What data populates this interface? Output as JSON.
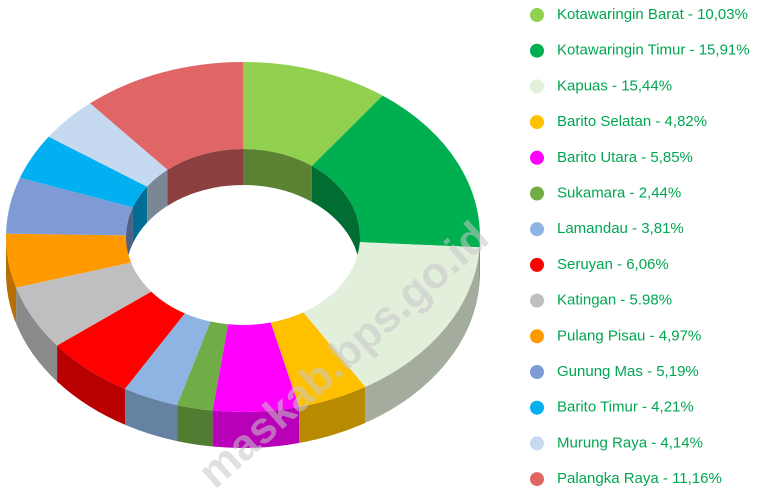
{
  "chart_data": {
    "type": "pie",
    "style": "3d-donut",
    "categories": [
      "Kotawaringin Barat - 10,03%",
      "Kotawaringin Timur - 15,91%",
      "Kapuas - 15,44%",
      "Barito Selatan - 4,82%",
      "Barito Utara - 5,85%",
      "Sukamara - 2,44%",
      "Lamandau - 3,81%",
      "Seruyan - 6,06%",
      "Katingan - 5.98%",
      "Pulang Pisau - 4,97%",
      "Gunung Mas - 5,19%",
      "Barito Timur - 4,21%",
      "Murung Raya - 4,14%",
      "Palangka Raya - 11,16%"
    ],
    "values": [
      10.03,
      15.91,
      15.44,
      4.82,
      5.85,
      2.44,
      3.81,
      6.06,
      5.98,
      4.97,
      5.19,
      4.21,
      4.14,
      11.16
    ],
    "colors": [
      "#92d050",
      "#00b050",
      "#e2efda",
      "#ffc000",
      "#ff00ff",
      "#70ad47",
      "#8db4e2",
      "#ff0000",
      "#bfbfbf",
      "#ff9900",
      "#7f9bd6",
      "#00b0f0",
      "#c5d9f1",
      "#e06666"
    ],
    "legend": "right",
    "watermark": "maskab.bps.go.id"
  }
}
